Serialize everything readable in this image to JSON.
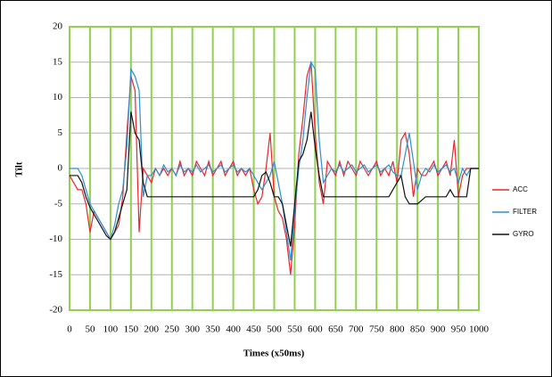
{
  "chart_data": {
    "type": "line",
    "x_label": "Times (x50ms)",
    "y_label": "Tilt",
    "x": [
      0,
      10,
      20,
      30,
      40,
      50,
      60,
      70,
      80,
      90,
      100,
      110,
      120,
      130,
      140,
      150,
      160,
      170,
      180,
      190,
      200,
      210,
      220,
      230,
      240,
      250,
      260,
      270,
      280,
      290,
      300,
      310,
      320,
      330,
      340,
      350,
      360,
      370,
      380,
      390,
      400,
      410,
      420,
      430,
      440,
      450,
      460,
      470,
      480,
      490,
      500,
      510,
      520,
      530,
      540,
      550,
      560,
      570,
      580,
      590,
      600,
      610,
      620,
      630,
      640,
      650,
      660,
      670,
      680,
      690,
      700,
      710,
      720,
      730,
      740,
      750,
      760,
      770,
      780,
      790,
      800,
      810,
      820,
      830,
      840,
      850,
      860,
      870,
      880,
      890,
      900,
      910,
      920,
      930,
      940,
      950,
      960,
      970,
      980,
      990,
      1000
    ],
    "series": [
      {
        "name": "ACC",
        "color": "#e8262b",
        "values": [
          -1,
          -2,
          -3,
          -3,
          -5,
          -9,
          -6,
          -7,
          -8,
          -9,
          -10,
          -9,
          -8,
          -4,
          5,
          13,
          11,
          -9,
          0,
          -1,
          -2,
          0,
          -1,
          0,
          -1,
          0,
          -1,
          1,
          -1,
          0,
          -1,
          1,
          0,
          -1,
          1,
          -1,
          0,
          1,
          -1,
          0,
          1,
          -1,
          0,
          -1,
          0,
          -3,
          -5,
          -4,
          0,
          5,
          -4,
          -6,
          -7,
          -10,
          -15,
          -8,
          2,
          7,
          13,
          15,
          5,
          -2,
          -5,
          1,
          0,
          -1,
          1,
          -1,
          1,
          0,
          -1,
          1,
          0,
          -1,
          0,
          1,
          -1,
          0,
          -1,
          1,
          -2,
          4,
          5,
          2,
          -4,
          0,
          -1,
          -1,
          0,
          1,
          -1,
          0,
          1,
          -1,
          4,
          -4,
          -1,
          0,
          0,
          0,
          0
        ]
      },
      {
        "name": "FILTER",
        "color": "#2f8fd0",
        "values": [
          0,
          0,
          0,
          -1,
          -3,
          -5,
          -6,
          -7,
          -8,
          -9,
          -10,
          -8,
          -5,
          -3,
          3,
          14,
          13,
          11,
          -4,
          -1,
          -1,
          0,
          -1,
          0.5,
          -0.5,
          0,
          -1,
          0.5,
          -0.5,
          0,
          -0.5,
          0.5,
          -0.5,
          0,
          0.5,
          -0.5,
          0,
          0.5,
          -0.5,
          0,
          0.5,
          -0.5,
          0,
          -0.5,
          0,
          -1,
          -2,
          -3,
          -2,
          -1,
          1,
          -2,
          -5,
          -9,
          -13,
          -6,
          0,
          4,
          10,
          15,
          14,
          4,
          -2,
          -1,
          0,
          -0.5,
          0.5,
          -0.5,
          0,
          0.5,
          -0.5,
          0,
          0.5,
          -0.5,
          0,
          0.5,
          -0.5,
          0,
          0.5,
          -0.5,
          -1,
          -1,
          2,
          5,
          1,
          -3,
          -1,
          0,
          -0.5,
          0.5,
          -0.5,
          0,
          0.5,
          -0.5,
          0,
          -2,
          0,
          -1,
          0,
          0,
          0
        ]
      },
      {
        "name": "GYRO",
        "color": "#111111",
        "values": [
          -1,
          -1,
          -1,
          -2,
          -4,
          -5.5,
          -6.5,
          -7.5,
          -8.5,
          -9.5,
          -10,
          -9,
          -7,
          -5,
          -3,
          8,
          5,
          4,
          -2,
          -4,
          -4,
          -4,
          -4,
          -4,
          -4,
          -4,
          -4,
          -4,
          -4,
          -4,
          -4,
          -4,
          -4,
          -4,
          -4,
          -4,
          -4,
          -4,
          -4,
          -4,
          -4,
          -4,
          -4,
          -4,
          -4,
          -4,
          -3,
          -1,
          -0.5,
          -2,
          -4,
          -4,
          -5,
          -8,
          -11,
          -5,
          1,
          2,
          4,
          8,
          3,
          -1,
          -4,
          -4,
          -4,
          -4,
          -4,
          -4,
          -4,
          -4,
          -4,
          -4,
          -4,
          -4,
          -4,
          -4,
          -4,
          -4,
          -4,
          -3,
          -2,
          -1,
          -4,
          -5,
          -5,
          -5,
          -4.5,
          -4,
          -4,
          -4,
          -4,
          -4,
          -4,
          -3,
          -4,
          -4,
          -4,
          -4,
          0,
          0,
          0
        ]
      }
    ],
    "xlim": [
      0,
      1000
    ],
    "xticks": [
      0,
      50,
      100,
      150,
      200,
      250,
      300,
      350,
      400,
      450,
      500,
      550,
      600,
      650,
      700,
      750,
      800,
      850,
      900,
      950,
      1000
    ],
    "ylim": [
      -20,
      20
    ],
    "yticks": [
      -20,
      -15,
      -10,
      -5,
      0,
      5,
      10,
      15,
      20
    ],
    "grid": true,
    "legend": "right"
  }
}
